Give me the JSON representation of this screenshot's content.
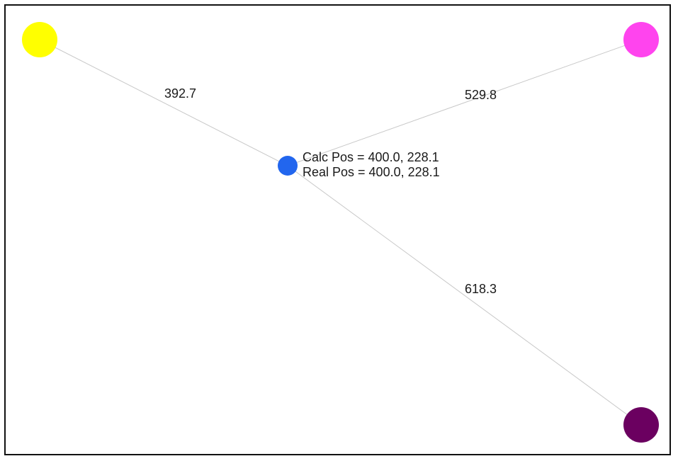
{
  "beacons": [
    {
      "id": "yellow",
      "color": "#ffff00"
    },
    {
      "id": "magenta",
      "color": "#ff44ee"
    },
    {
      "id": "purple",
      "color": "#6b0060"
    }
  ],
  "target": {
    "color": "#2266ee"
  },
  "distances": {
    "yellow": "392.7",
    "magenta": "529.8",
    "purple": "618.3"
  },
  "readout": {
    "calc_pos": "Calc Pos = 400.0, 228.1",
    "real_pos": "Real Pos = 400.0, 228.1"
  }
}
